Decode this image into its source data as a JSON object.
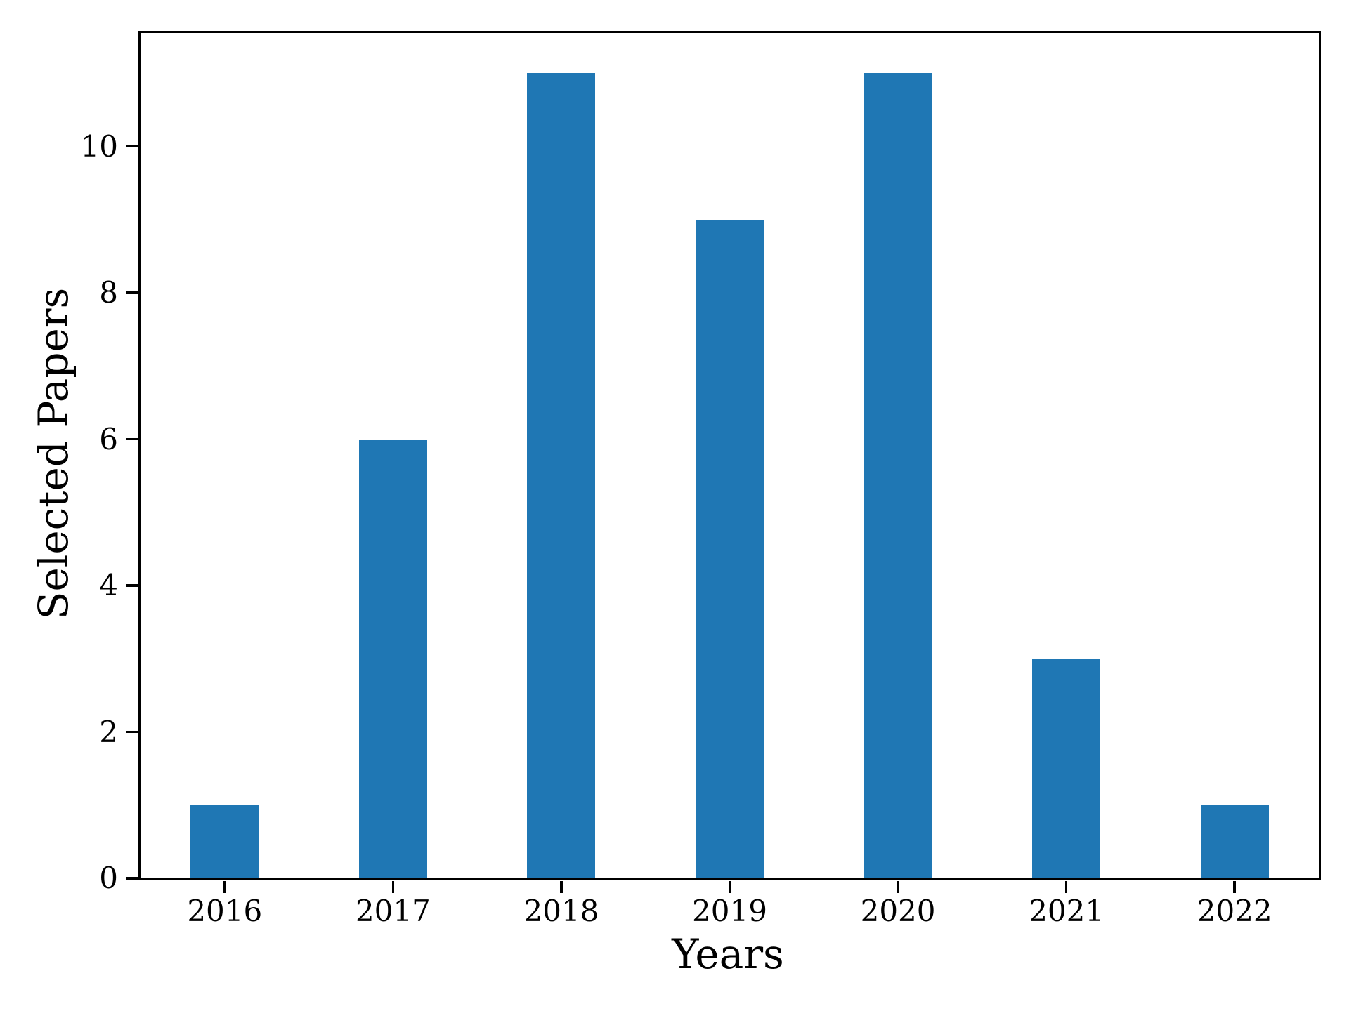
{
  "chart_data": {
    "type": "bar",
    "categories": [
      "2016",
      "2017",
      "2018",
      "2019",
      "2020",
      "2021",
      "2022"
    ],
    "values": [
      1,
      6,
      11,
      9,
      11,
      3,
      1
    ],
    "title": "",
    "xlabel": "Years",
    "ylabel": "Selected Papers",
    "yticks": [
      0,
      2,
      4,
      6,
      8,
      10
    ],
    "ylim": [
      0,
      11.55
    ],
    "bar_width_fraction": 0.405,
    "bar_color": "#1f77b4",
    "axis_color": "#000000",
    "background_color": "#ffffff",
    "grid": false,
    "legend": null
  }
}
